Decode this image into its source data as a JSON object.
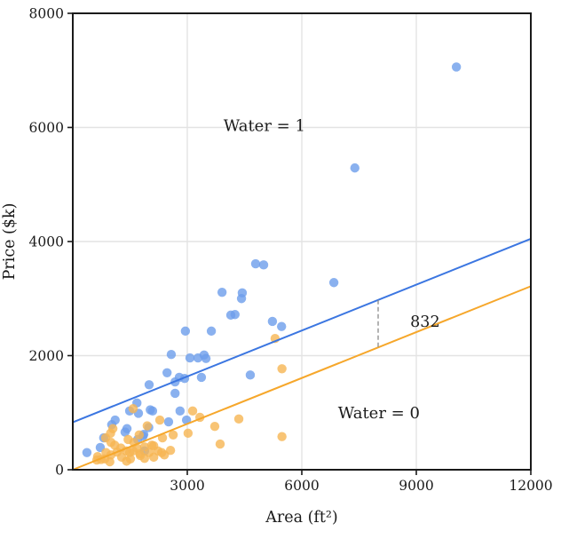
{
  "chart_data": {
    "type": "scatter",
    "title": "",
    "xlabel": "Area (ft²)",
    "ylabel": "Price ($k)",
    "xlim": [
      0,
      12000
    ],
    "ylim": [
      0,
      8000
    ],
    "xticks": [
      3000,
      6000,
      9000,
      12000
    ],
    "yticks": [
      0,
      2000,
      4000,
      6000,
      8000
    ],
    "grid": true,
    "grid_color": "#e3e3e3",
    "border_color": "#1a1a1a",
    "series": [
      {
        "name": "Water = 1",
        "dot_color": "#6d9eeb",
        "line_color": "#3b76e1",
        "fit_intercept": 832,
        "fit_slope": 0.268,
        "label": {
          "text": "Water = 1",
          "x": 5020,
          "y": 6030
        },
        "points": [
          [
            370,
            300
          ],
          [
            720,
            390
          ],
          [
            810,
            560
          ],
          [
            1020,
            790
          ],
          [
            1110,
            870
          ],
          [
            1370,
            660
          ],
          [
            1420,
            720
          ],
          [
            1490,
            1030
          ],
          [
            1680,
            1170
          ],
          [
            1700,
            530
          ],
          [
            1720,
            990
          ],
          [
            1840,
            590
          ],
          [
            1860,
            620
          ],
          [
            1880,
            330
          ],
          [
            1990,
            740
          ],
          [
            2030,
            1050
          ],
          [
            2000,
            1490
          ],
          [
            2090,
            1030
          ],
          [
            2470,
            1700
          ],
          [
            2510,
            840
          ],
          [
            2580,
            2020
          ],
          [
            2680,
            1340
          ],
          [
            2680,
            1540
          ],
          [
            2790,
            1620
          ],
          [
            2810,
            1030
          ],
          [
            2930,
            1600
          ],
          [
            2950,
            2430
          ],
          [
            2980,
            870
          ],
          [
            3070,
            1960
          ],
          [
            3280,
            1960
          ],
          [
            3370,
            1620
          ],
          [
            3440,
            2010
          ],
          [
            3490,
            1950
          ],
          [
            3630,
            2430
          ],
          [
            3910,
            3110
          ],
          [
            4140,
            2710
          ],
          [
            4250,
            2720
          ],
          [
            4420,
            3000
          ],
          [
            4440,
            3100
          ],
          [
            4650,
            1660
          ],
          [
            4790,
            3610
          ],
          [
            5000,
            3590
          ],
          [
            5230,
            2600
          ],
          [
            5470,
            2510
          ],
          [
            6840,
            3280
          ],
          [
            7390,
            5290
          ],
          [
            10050,
            7060
          ]
        ]
      },
      {
        "name": "Water = 0",
        "dot_color": "#f6b552",
        "line_color": "#f6a72b",
        "fit_intercept": 0,
        "fit_slope": 0.268,
        "label": {
          "text": "Water = 0",
          "x": 8020,
          "y": 1000
        },
        "points": [
          [
            630,
            170
          ],
          [
            650,
            230
          ],
          [
            740,
            180
          ],
          [
            840,
            190
          ],
          [
            860,
            560
          ],
          [
            870,
            300
          ],
          [
            970,
            140
          ],
          [
            990,
            640
          ],
          [
            1000,
            260
          ],
          [
            1000,
            480
          ],
          [
            1050,
            720
          ],
          [
            1100,
            430
          ],
          [
            1160,
            310
          ],
          [
            1260,
            380
          ],
          [
            1280,
            220
          ],
          [
            1400,
            330
          ],
          [
            1410,
            150
          ],
          [
            1450,
            530
          ],
          [
            1490,
            300
          ],
          [
            1510,
            190
          ],
          [
            1580,
            330
          ],
          [
            1580,
            1070
          ],
          [
            1600,
            480
          ],
          [
            1680,
            380
          ],
          [
            1740,
            610
          ],
          [
            1760,
            280
          ],
          [
            1770,
            250
          ],
          [
            1880,
            200
          ],
          [
            1880,
            400
          ],
          [
            1950,
            770
          ],
          [
            2000,
            300
          ],
          [
            2070,
            430
          ],
          [
            2120,
            220
          ],
          [
            2120,
            420
          ],
          [
            2230,
            330
          ],
          [
            2280,
            870
          ],
          [
            2330,
            300
          ],
          [
            2350,
            560
          ],
          [
            2400,
            260
          ],
          [
            2560,
            340
          ],
          [
            2630,
            610
          ],
          [
            3020,
            640
          ],
          [
            3140,
            1030
          ],
          [
            3330,
            920
          ],
          [
            3720,
            760
          ],
          [
            3860,
            450
          ],
          [
            4350,
            890
          ],
          [
            5300,
            2300
          ],
          [
            5480,
            580
          ],
          [
            5480,
            1770
          ]
        ]
      }
    ],
    "annotation": {
      "text": "832",
      "x": 9230,
      "y": 2600,
      "dashed_line_x": 8000,
      "text_color": "#111111",
      "dash_color": "#8a8a8a"
    }
  }
}
